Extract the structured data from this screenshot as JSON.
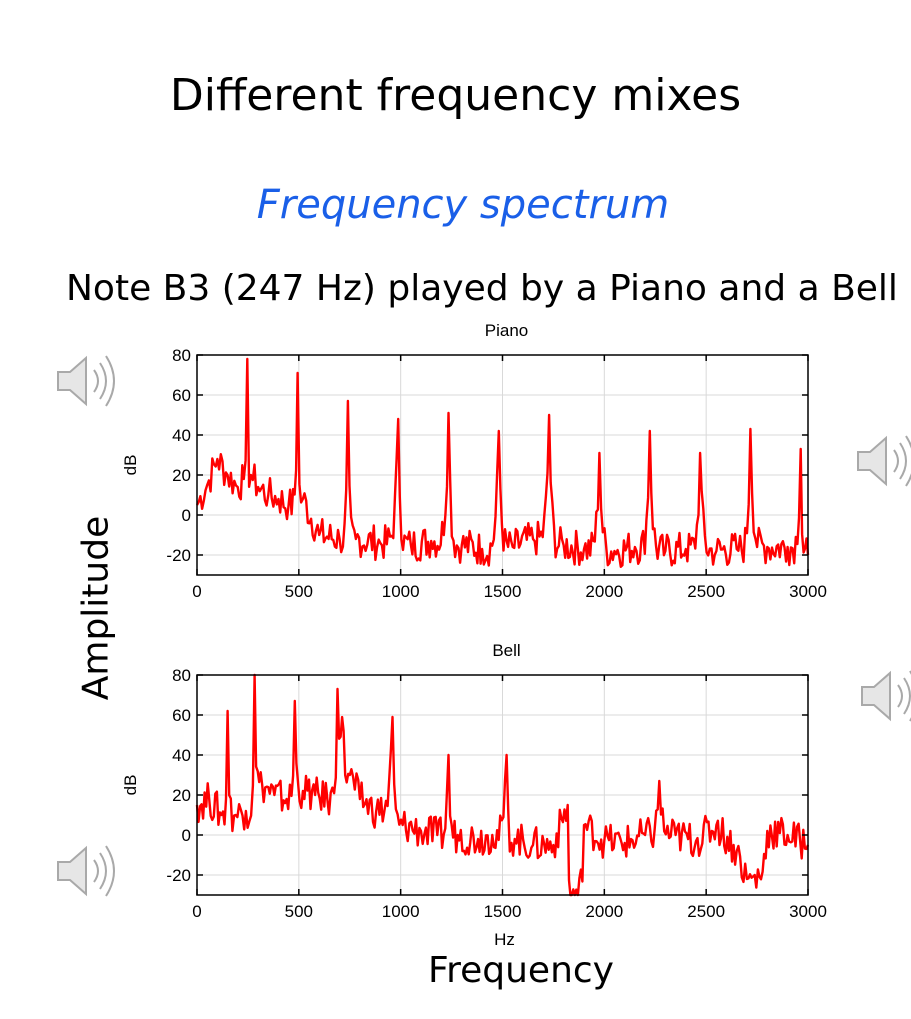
{
  "slide": {
    "title": "Different frequency mixes",
    "subtitle": "Frequency spectrum",
    "caption": "Note B3 (247 Hz) played by a Piano and a Bell",
    "y_axis_label": "Amplitude",
    "x_axis_label": "Frequency"
  },
  "icons": {
    "speaker": "speaker-icon"
  },
  "colors": {
    "series": "#ff0000",
    "subtitle": "#1a5fe8"
  },
  "chart_data": [
    {
      "type": "line",
      "title": "Piano",
      "xlabel": "",
      "ylabel": "dB",
      "xlim": [
        0,
        3000
      ],
      "ylim": [
        -30,
        80
      ],
      "xticks": [
        0,
        500,
        1000,
        1500,
        2000,
        2500,
        3000
      ],
      "yticks": [
        -20,
        0,
        20,
        40,
        60,
        80
      ],
      "grid": true,
      "series": [
        {
          "name": "Piano",
          "x": [
            0,
            50,
            100,
            150,
            200,
            230,
            247,
            265,
            300,
            350,
            400,
            450,
            494,
            520,
            600,
            700,
            741,
            780,
            900,
            988,
            1050,
            1150,
            1235,
            1300,
            1400,
            1482,
            1550,
            1650,
            1729,
            1800,
            1900,
            1976,
            2050,
            2150,
            2223,
            2300,
            2400,
            2470,
            2550,
            2650,
            2717,
            2800,
            2900,
            2964,
            3000
          ],
          "values": [
            5,
            15,
            28,
            20,
            14,
            18,
            78,
            20,
            14,
            10,
            8,
            5,
            71,
            8,
            -10,
            -12,
            57,
            -12,
            -14,
            48,
            -15,
            -13,
            51,
            -15,
            -17,
            42,
            -16,
            -12,
            50,
            -15,
            -17,
            31,
            -18,
            -16,
            42,
            -18,
            -17,
            31,
            -18,
            -17,
            43,
            -16,
            -16,
            33,
            -20
          ]
        }
      ]
    },
    {
      "type": "line",
      "title": "Bell",
      "xlabel": "Hz",
      "ylabel": "dB",
      "xlim": [
        0,
        3000
      ],
      "ylim": [
        -30,
        80
      ],
      "xticks": [
        0,
        500,
        1000,
        1500,
        2000,
        2500,
        3000
      ],
      "yticks": [
        -20,
        0,
        20,
        40,
        60,
        80
      ],
      "grid": true,
      "series": [
        {
          "name": "Bell",
          "x": [
            0,
            60,
            120,
            150,
            190,
            240,
            283,
            320,
            380,
            440,
            480,
            520,
            580,
            640,
            690,
            720,
            750,
            800,
            880,
            960,
            1010,
            1100,
            1180,
            1235,
            1280,
            1380,
            1450,
            1520,
            1560,
            1650,
            1750,
            1820,
            1840,
            1900,
            2000,
            2100,
            2200,
            2270,
            2350,
            2450,
            2550,
            2650,
            2700,
            2800,
            2900,
            3000
          ],
          "values": [
            15,
            18,
            10,
            62,
            10,
            12,
            80,
            25,
            20,
            18,
            67,
            22,
            20,
            18,
            73,
            52,
            30,
            18,
            12,
            59,
            5,
            2,
            0,
            40,
            0,
            -2,
            0,
            40,
            -2,
            -5,
            -5,
            15,
            -30,
            5,
            -3,
            -4,
            0,
            27,
            0,
            -3,
            5,
            -8,
            -22,
            2,
            0,
            -5
          ]
        }
      ]
    }
  ]
}
